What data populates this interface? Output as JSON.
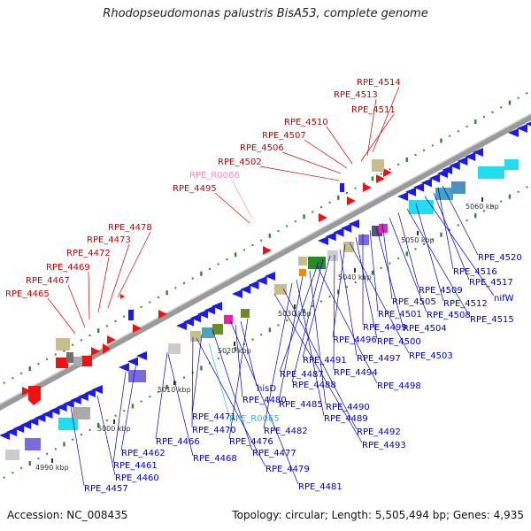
{
  "title": "Rhodopseudomonas palustris BisA53, complete genome",
  "accession": "Accession: NC_008435",
  "summary": "Topology: circular; Length: 5,505,494 bp; Genes: 4,935",
  "ticks": [
    "4990 kbp",
    "5000 kbp",
    "5010 kbp",
    "5020 kbp",
    "5030 kbp",
    "5040 kbp",
    "5050 kbp",
    "5060 kbp"
  ],
  "forward_labels": [
    "RPE_4514",
    "RPE_4513",
    "RPE_4511",
    "RPE_4510",
    "RPE_4507",
    "RPE_4506",
    "RPE_4502",
    "RPE_R0066",
    "RPE_4495",
    "RPE_4478",
    "RPE_4473",
    "RPE_4472",
    "RPE_4469",
    "RPE_4467",
    "RPE_4465"
  ],
  "reverse_labels": [
    "RPE_4520",
    "RPE_4516",
    "RPE_4517",
    "nifW",
    "RPE_4512",
    "RPE_4515",
    "RPE_4509",
    "RPE_4508",
    "RPE_4505",
    "RPE_4504",
    "RPE_4501",
    "RPE_4499",
    "RPE_4500",
    "RPE_4496",
    "RPE_4503",
    "RPE_4497",
    "RPE_4491",
    "RPE_4494",
    "RPE_4487",
    "RPE_4488",
    "RPE_4498",
    "hisD",
    "RPE_4480",
    "RPE_4490",
    "RPE_4485",
    "RPE_4489",
    "RPE_R0065",
    "RPE_4471",
    "RPE_4482",
    "RPE_4470",
    "RPE_4492",
    "RPE_4466",
    "RPE_4476",
    "RPE_4493",
    "RPE_4462",
    "RPE_4468",
    "RPE_4477",
    "RPE_4461",
    "RPE_4479",
    "RPE_4460",
    "RPE_4481",
    "RPE_4457"
  ],
  "colors": {
    "forward_gene": "#ee1111",
    "reverse_gene": "#1a1aee",
    "label_forward": "#cc0000",
    "label_reverse": "#0000cc",
    "rna_forward": "#ff88bb",
    "rna_reverse": "#22c0cc",
    "backbone": "#888888",
    "gc_dots": "#2a8a2a"
  }
}
